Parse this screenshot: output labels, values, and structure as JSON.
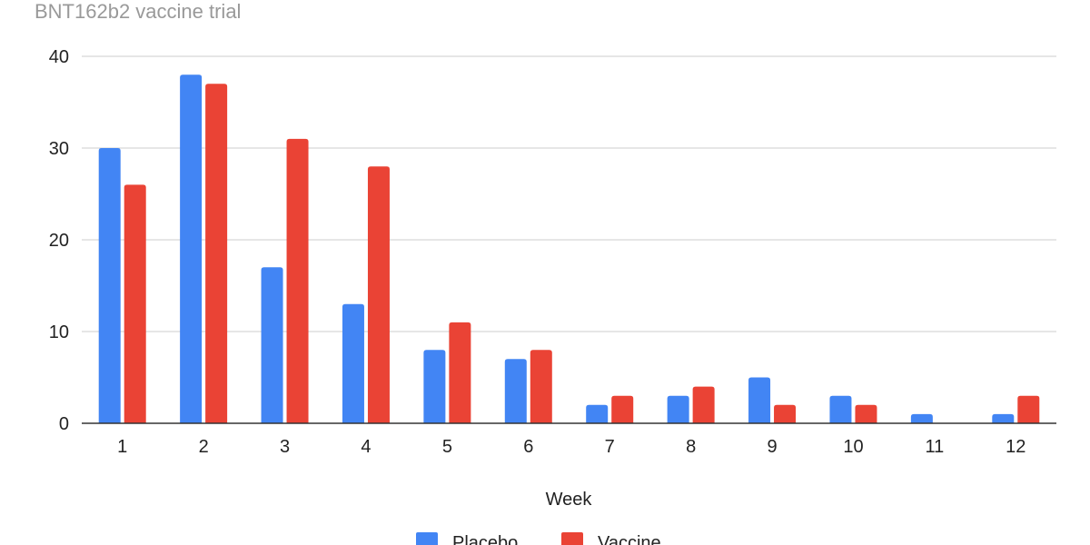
{
  "chart_data": {
    "type": "bar",
    "title": "BNT162b2 vaccine trial",
    "xlabel": "Week",
    "ylabel": "",
    "ylim": [
      0,
      40
    ],
    "yticks": [
      0,
      10,
      20,
      30,
      40
    ],
    "grid": true,
    "legend_position": "bottom",
    "categories": [
      "1",
      "2",
      "3",
      "4",
      "5",
      "6",
      "7",
      "8",
      "9",
      "10",
      "11",
      "12"
    ],
    "series": [
      {
        "name": "Placebo",
        "color": "#4285f4",
        "values": [
          30,
          38,
          17,
          13,
          8,
          7,
          2,
          3,
          5,
          3,
          1,
          1
        ]
      },
      {
        "name": "Vaccine",
        "color": "#ea4335",
        "values": [
          26,
          37,
          31,
          28,
          11,
          8,
          3,
          4,
          2,
          2,
          0,
          3
        ]
      }
    ]
  }
}
